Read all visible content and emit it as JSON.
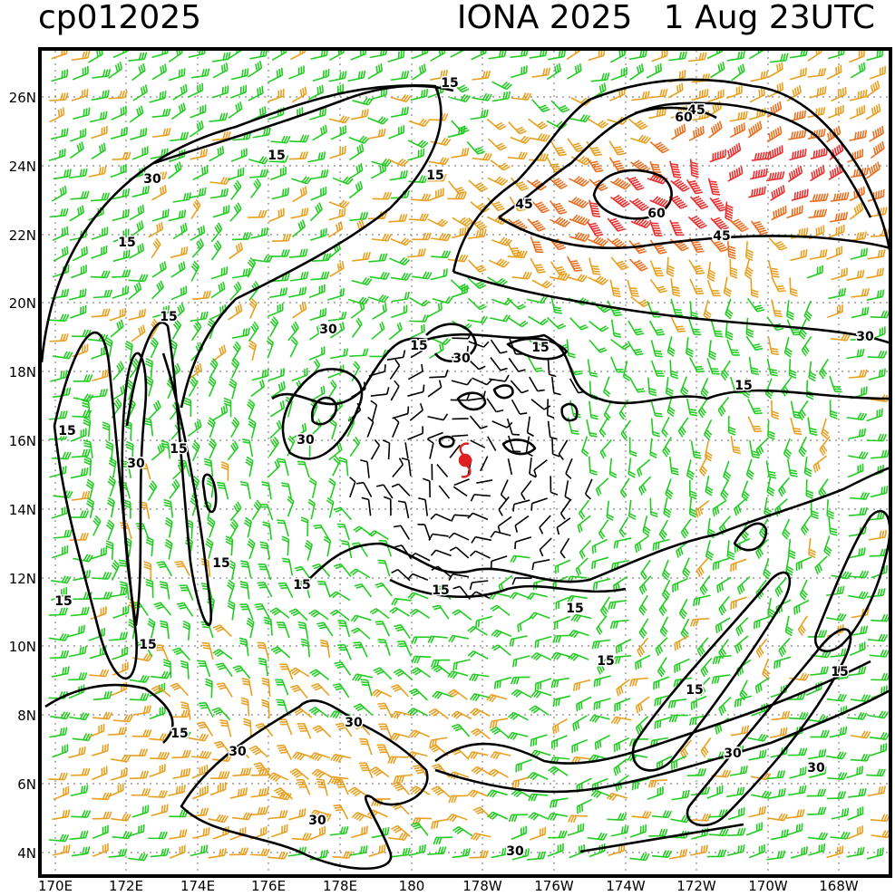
{
  "header": {
    "storm_id": "cp012025",
    "storm_title": "IONA 2025   1 Aug 23UTC"
  },
  "axes": {
    "lat_labels": [
      "26N",
      "24N",
      "22N",
      "20N",
      "18N",
      "16N",
      "14N",
      "12N",
      "10N",
      "8N",
      "6N",
      "4N"
    ],
    "lon_labels": [
      "170E",
      "172E",
      "174E",
      "176E",
      "178E",
      "180",
      "178W",
      "176W",
      "174W",
      "172W",
      "170W",
      "168W"
    ]
  },
  "contour_labels": [
    {
      "text": "15"
    },
    {
      "text": "15"
    },
    {
      "text": "15"
    },
    {
      "text": "15"
    },
    {
      "text": "15"
    },
    {
      "text": "15"
    },
    {
      "text": "15"
    },
    {
      "text": "15"
    },
    {
      "text": "15"
    },
    {
      "text": "15"
    },
    {
      "text": "15"
    },
    {
      "text": "15"
    },
    {
      "text": "15"
    },
    {
      "text": "15"
    },
    {
      "text": "15"
    },
    {
      "text": "15"
    },
    {
      "text": "15"
    },
    {
      "text": "15"
    },
    {
      "text": "15"
    },
    {
      "text": "15"
    },
    {
      "text": "30"
    },
    {
      "text": "30"
    },
    {
      "text": "30"
    },
    {
      "text": "30"
    },
    {
      "text": "30"
    },
    {
      "text": "30"
    },
    {
      "text": "30"
    },
    {
      "text": "30"
    },
    {
      "text": "30"
    },
    {
      "text": "30"
    },
    {
      "text": "30"
    },
    {
      "text": "30"
    },
    {
      "text": "45"
    },
    {
      "text": "45"
    },
    {
      "text": "45"
    },
    {
      "text": "60"
    },
    {
      "text": "60"
    }
  ],
  "colors": {
    "calm": "#000000",
    "band_15_30": "#22cc22",
    "band_30_45": "#e8a020",
    "band_45_60": "#e87020",
    "band_60_plus": "#e83030",
    "storm_symbol": "#e02020",
    "grid": "#999999"
  },
  "storm_symbol": {
    "icon": "tropical-cyclone-icon",
    "lat": 15.5,
    "lon": 181.6
  }
}
